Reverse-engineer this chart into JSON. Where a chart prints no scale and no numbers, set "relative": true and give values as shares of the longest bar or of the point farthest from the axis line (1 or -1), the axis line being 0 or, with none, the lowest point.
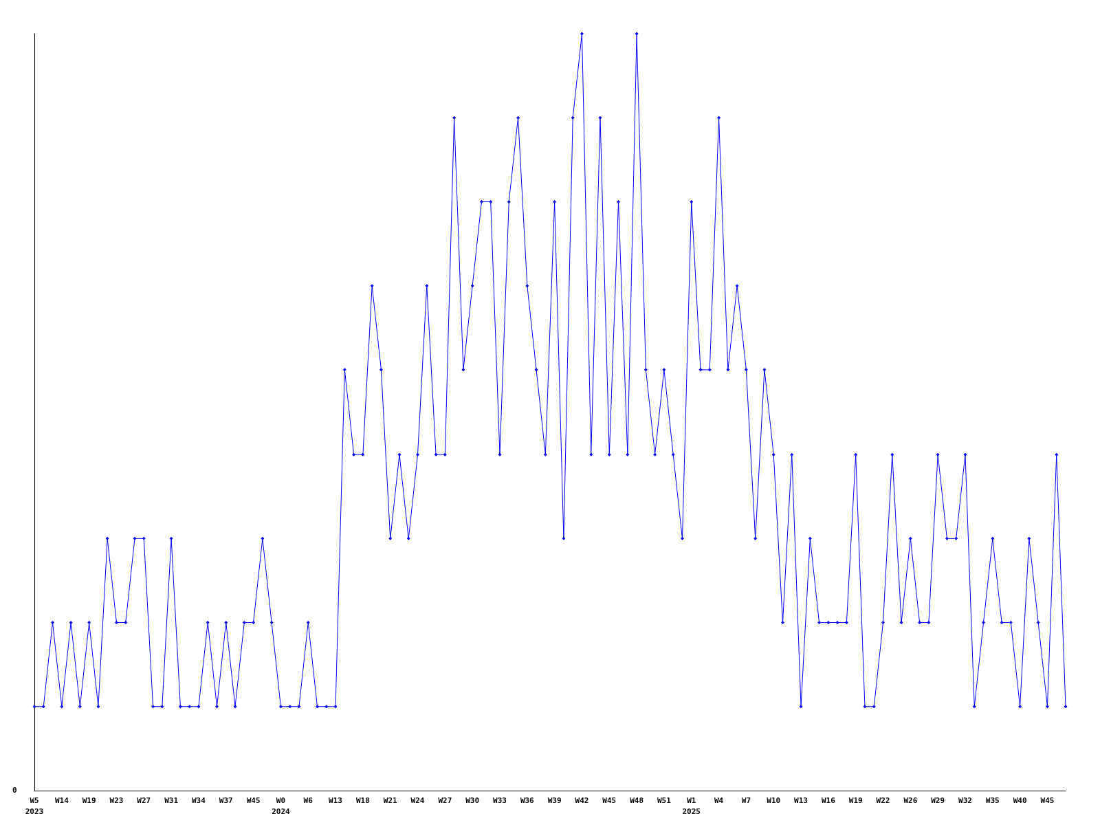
{
  "chart_data": {
    "type": "line",
    "relative": true,
    "marker": "diamond",
    "line_style": "solid",
    "grid": false,
    "annotations": [
      "0"
    ],
    "categories": [
      "W5\n2023",
      null,
      null,
      "W14",
      null,
      null,
      "W19",
      null,
      null,
      "W23",
      null,
      null,
      "W27",
      null,
      null,
      "W31",
      null,
      null,
      "W34",
      null,
      null,
      "W37",
      null,
      null,
      "W45",
      null,
      null,
      "W0\n2024",
      null,
      null,
      "W6",
      null,
      null,
      "W13",
      null,
      null,
      "W18",
      null,
      null,
      "W21",
      null,
      null,
      "W24",
      null,
      null,
      "W27",
      null,
      null,
      "W30",
      null,
      null,
      "W33",
      null,
      null,
      "W36",
      null,
      null,
      "W39",
      null,
      null,
      "W42",
      null,
      null,
      "W45",
      null,
      null,
      "W48",
      null,
      null,
      "W51",
      null,
      null,
      "W1\n2025",
      null,
      null,
      "W4",
      null,
      null,
      "W7",
      null,
      null,
      "W10",
      null,
      null,
      "W13",
      null,
      null,
      "W16",
      null,
      null,
      "W19",
      null,
      null,
      "W22",
      null,
      null,
      "W26",
      null,
      null,
      "W29",
      null,
      null,
      "W32",
      null,
      null,
      "W35",
      null,
      null,
      "W40",
      null,
      null,
      "W45",
      null,
      null
    ],
    "series": [
      {
        "color": "#0000ff",
        "values": [
          0.111,
          0.111,
          0.222,
          0.111,
          0.222,
          0.111,
          0.222,
          0.111,
          0.333,
          0.222,
          0.222,
          0.333,
          0.333,
          0.111,
          0.111,
          0.333,
          0.111,
          0.111,
          0.111,
          0.222,
          0.111,
          0.222,
          0.111,
          0.222,
          0.222,
          0.333,
          0.222,
          0.111,
          0.111,
          0.111,
          0.222,
          0.111,
          0.111,
          0.111,
          0.556,
          0.444,
          0.444,
          0.667,
          0.556,
          0.333,
          0.444,
          0.333,
          0.444,
          0.667,
          0.444,
          0.444,
          0.889,
          0.556,
          0.667,
          0.778,
          0.778,
          0.444,
          0.778,
          0.889,
          0.667,
          0.556,
          0.444,
          0.778,
          0.333,
          0.889,
          1,
          0.444,
          0.889,
          0.444,
          0.778,
          0.444,
          1,
          0.556,
          0.444,
          0.556,
          0.444,
          0.333,
          0.778,
          0.556,
          0.556,
          0.889,
          0.556,
          0.667,
          0.556,
          0.333,
          0.556,
          0.444,
          0.222,
          0.444,
          0.111,
          0.333,
          0.222,
          0.222,
          0.222,
          0.222,
          0.444,
          0.111,
          0.111,
          0.222,
          0.444,
          0.222,
          0.333,
          0.222,
          0.222,
          0.444,
          0.333,
          0.333,
          0.444,
          0.111,
          0.222,
          0.333,
          0.222,
          0.222,
          0.111,
          0.333,
          0.222,
          0.111,
          0.444,
          0.111
        ]
      }
    ]
  }
}
